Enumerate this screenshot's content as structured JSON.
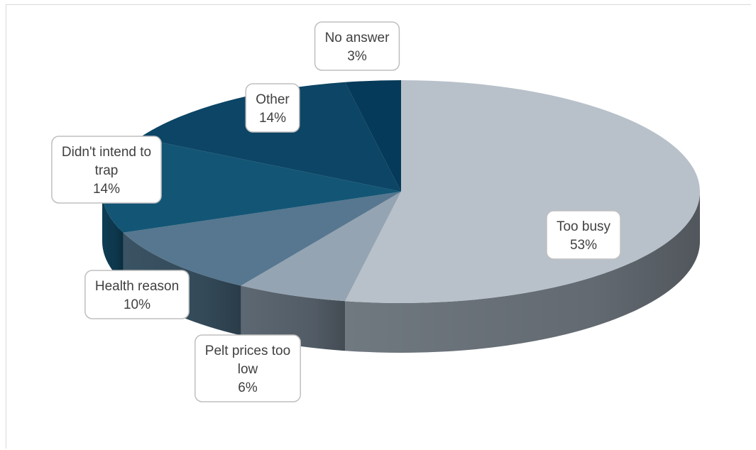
{
  "chart_data": {
    "type": "pie",
    "style": "3d",
    "categories": [
      "Too busy",
      "Pelt prices too low",
      "Health reason",
      "Didn't intend to trap",
      "Other",
      "No answer"
    ],
    "values": [
      53,
      6,
      10,
      14,
      14,
      3
    ],
    "value_labels": [
      "53%",
      "6%",
      "10%",
      "14%",
      "14%",
      "3%"
    ],
    "label_lines": [
      [
        "Too busy",
        "53%"
      ],
      [
        "Pelt prices too",
        "low",
        "6%"
      ],
      [
        "Health reason",
        "10%"
      ],
      [
        "Didn't intend to",
        "trap",
        "14%"
      ],
      [
        "Other",
        "14%"
      ],
      [
        "No answer",
        "3%"
      ]
    ],
    "colors": [
      "#b8c1ca",
      "#95a4b2",
      "#56778f",
      "#135575",
      "#0c4565",
      "#063a5a"
    ],
    "side_colors": [
      "#707880",
      "#5d6873",
      "#3a5364",
      "#0e3d54",
      "#093248",
      "#052a40"
    ],
    "legend": "none",
    "start_angle_deg": 90,
    "direction": "clockwise"
  }
}
